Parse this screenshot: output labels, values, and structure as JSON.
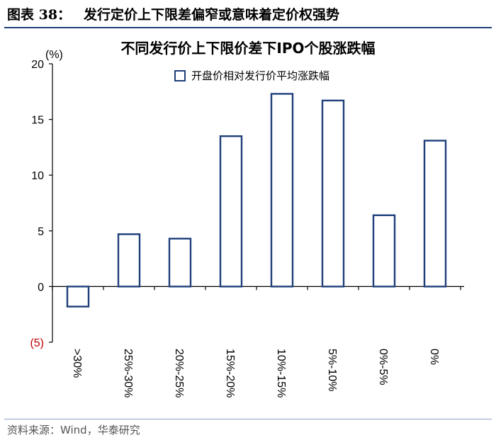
{
  "header": {
    "figure_label": "图表 38：",
    "figure_title": "发行定价上下限差偏窄或意味着定价权强势"
  },
  "source": "资料来源：Wind，华泰研究",
  "chart_data": {
    "type": "bar",
    "title": "不同发行价上下限价差下IPO个股涨跌幅",
    "unit_label": "(%)",
    "categories": [
      ">30%",
      "25%-30%",
      "20%-25%",
      "15%-20%",
      "10%-15%",
      "5%-10%",
      "0%-5%",
      "0%"
    ],
    "series": [
      {
        "name": "开盘价相对发行价平均涨跌幅",
        "values": [
          -1.8,
          4.7,
          4.3,
          13.5,
          17.3,
          16.7,
          6.4,
          13.1
        ]
      }
    ],
    "ylim": [
      -5,
      20
    ],
    "yticks": [
      20,
      15,
      10,
      5,
      0,
      -5
    ],
    "ytick_labels": [
      "20",
      "15",
      "10",
      "5",
      "0",
      "(5)"
    ],
    "legend_position": "top-center",
    "grid": false,
    "colors": {
      "bar_edge": "#1f3f7a",
      "bar_fill": "#ffffff",
      "negative_tick": "#c00000"
    }
  }
}
